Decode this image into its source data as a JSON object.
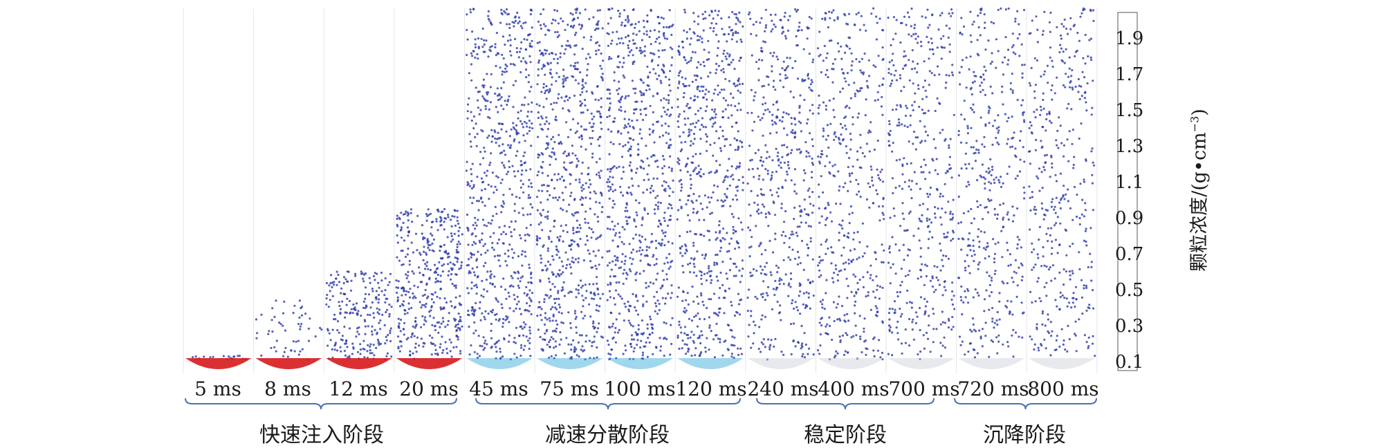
{
  "panels": [
    {
      "time": "5 ms",
      "stage": 0
    },
    {
      "time": "8 ms",
      "stage": 0
    },
    {
      "time": "12 ms",
      "stage": 0
    },
    {
      "time": "20 ms",
      "stage": 0
    },
    {
      "time": "45 ms",
      "stage": 1
    },
    {
      "time": "75 ms",
      "stage": 1
    },
    {
      "time": "100 ms",
      "stage": 1
    },
    {
      "time": "120 ms",
      "stage": 1
    },
    {
      "time": "240 ms",
      "stage": 2
    },
    {
      "time": "400 ms",
      "stage": 2
    },
    {
      "time": "700 ms",
      "stage": 2
    },
    {
      "time": "720 ms",
      "stage": 3
    },
    {
      "time": "800 ms",
      "stage": 3
    }
  ],
  "stages": [
    {
      "label": "快速注入阶段"
    },
    {
      "label": "减速分散阶段"
    },
    {
      "label": "稳定阶段"
    },
    {
      "label": "沉降阶段"
    }
  ],
  "colorbar": {
    "title": "颗粒浓度/(g•cm",
    "title_exp": "−3",
    "title_close": ")",
    "ticks": [
      "1.9",
      "1.7",
      "1.5",
      "1.3",
      "1.1",
      "0.9",
      "0.7",
      "0.5",
      "0.3",
      "0.1"
    ],
    "colors": [
      "#d7191c",
      "#e8472a",
      "#f08030",
      "#f3a838",
      "#e9c93a",
      "#d8d93c",
      "#a9d03e",
      "#7cc242",
      "#5ab747",
      "#47ad5a",
      "#3dab8a",
      "#37b0b5",
      "#2fa6d6",
      "#2b87cc",
      "#2a67b8",
      "#263f9f",
      "#23338e"
    ]
  },
  "colors": {
    "particle": "#2b3aa8",
    "brace": "#4a6fb5",
    "hot": "#d7191c"
  }
}
